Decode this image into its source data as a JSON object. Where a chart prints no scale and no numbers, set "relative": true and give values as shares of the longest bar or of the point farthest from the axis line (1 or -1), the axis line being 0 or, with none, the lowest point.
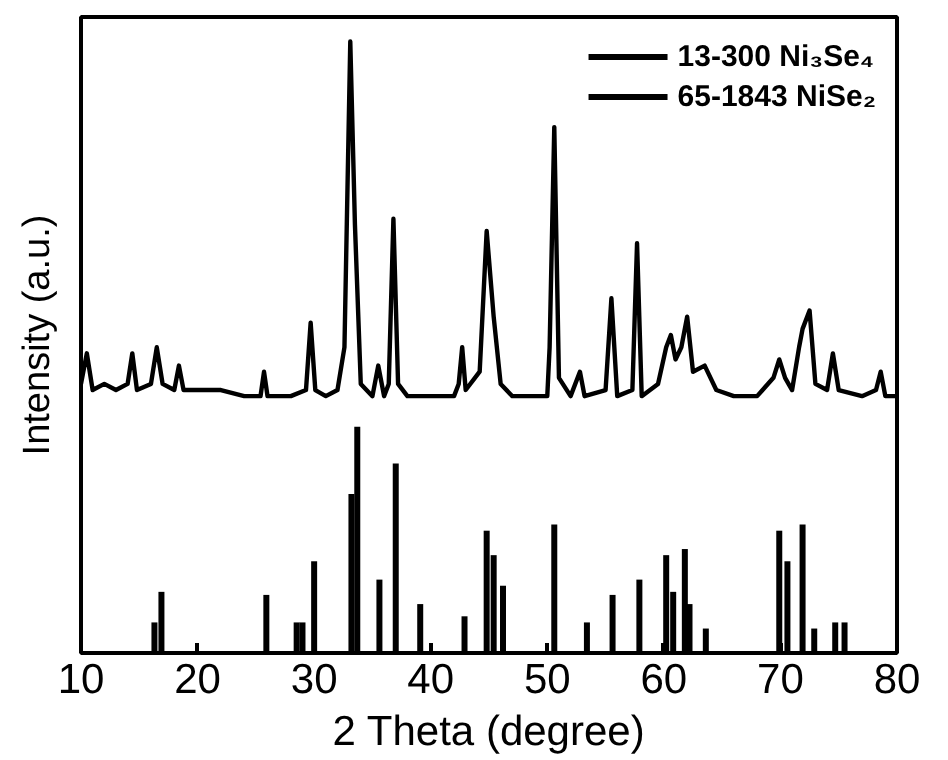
{
  "chart_data": {
    "type": "line",
    "relative": true,
    "xlabel": "2 Theta (degree)",
    "ylabel": "Intensity (a.u.)",
    "xlim": [
      10,
      80
    ],
    "xticks": [
      10,
      20,
      30,
      40,
      50,
      60,
      70,
      80
    ],
    "legend": "top right",
    "grid": false,
    "tick_labels": "x",
    "series": [
      {
        "color": "#000000",
        "x": [
          10,
          10.5,
          11,
          12,
          13,
          14,
          14.4,
          14.8,
          16,
          16.5,
          17,
          18,
          18.4,
          18.8,
          20,
          22,
          24,
          25.4,
          25.7,
          26,
          28,
          29.3,
          29.7,
          30.1,
          31,
          32,
          32.6,
          33.1,
          33.5,
          34,
          35,
          35.5,
          36,
          36.4,
          36.8,
          37.2,
          38,
          40,
          42,
          42.4,
          42.7,
          43,
          44.2,
          44.8,
          45.4,
          46,
          47,
          48,
          50,
          50.2,
          50.6,
          51,
          52,
          52.8,
          53.2,
          55,
          55.5,
          56,
          57.3,
          57.7,
          58.1,
          59.5,
          60.2,
          60.6,
          61,
          61.5,
          62,
          62.5,
          63.5,
          64.5,
          66,
          68,
          69.4,
          69.9,
          70.4,
          71,
          71.6,
          71.9,
          72.5,
          73,
          74,
          74.5,
          75,
          77,
          78.2,
          78.6,
          79,
          80
        ],
        "values": [
          0.44,
          0.49,
          0.43,
          0.44,
          0.43,
          0.44,
          0.49,
          0.43,
          0.44,
          0.5,
          0.44,
          0.43,
          0.47,
          0.43,
          0.43,
          0.43,
          0.42,
          0.42,
          0.46,
          0.42,
          0.42,
          0.43,
          0.54,
          0.43,
          0.42,
          0.43,
          0.5,
          1.0,
          0.7,
          0.44,
          0.42,
          0.47,
          0.42,
          0.44,
          0.71,
          0.44,
          0.42,
          0.42,
          0.42,
          0.44,
          0.5,
          0.43,
          0.46,
          0.69,
          0.55,
          0.44,
          0.42,
          0.42,
          0.42,
          0.5,
          0.86,
          0.45,
          0.42,
          0.46,
          0.42,
          0.43,
          0.58,
          0.42,
          0.43,
          0.67,
          0.42,
          0.44,
          0.5,
          0.52,
          0.48,
          0.5,
          0.55,
          0.46,
          0.47,
          0.43,
          0.42,
          0.42,
          0.45,
          0.48,
          0.45,
          0.43,
          0.5,
          0.53,
          0.56,
          0.44,
          0.43,
          0.49,
          0.43,
          0.42,
          0.43,
          0.46,
          0.42,
          0.42
        ]
      },
      {
        "type": "bar",
        "name": "13-300 Ni₃Se₄",
        "color": "#000000",
        "x": [
          16.3,
          16.9,
          25.9,
          28.5,
          29.0,
          33.2,
          35.6,
          39.1,
          44.8,
          45.4,
          46.2,
          53.4,
          60.8,
          61.8,
          63.6,
          69.9,
          70.6,
          72.9,
          75.5
        ],
        "values": [
          0.05,
          0.1,
          0.095,
          0.05,
          0.05,
          0.26,
          0.12,
          0.08,
          0.2,
          0.16,
          0.11,
          0.05,
          0.1,
          0.17,
          0.04,
          0.2,
          0.15,
          0.04,
          0.05
        ]
      },
      {
        "type": "bar",
        "name": "65-1843 NiSe₂",
        "color": "#000000",
        "x": [
          30.0,
          33.7,
          37.0,
          42.9,
          50.6,
          55.6,
          57.9,
          60.2,
          62.2,
          71.9,
          74.7
        ],
        "values": [
          0.15,
          0.37,
          0.31,
          0.06,
          0.21,
          0.095,
          0.12,
          0.16,
          0.08,
          0.21,
          0.05
        ]
      }
    ]
  }
}
